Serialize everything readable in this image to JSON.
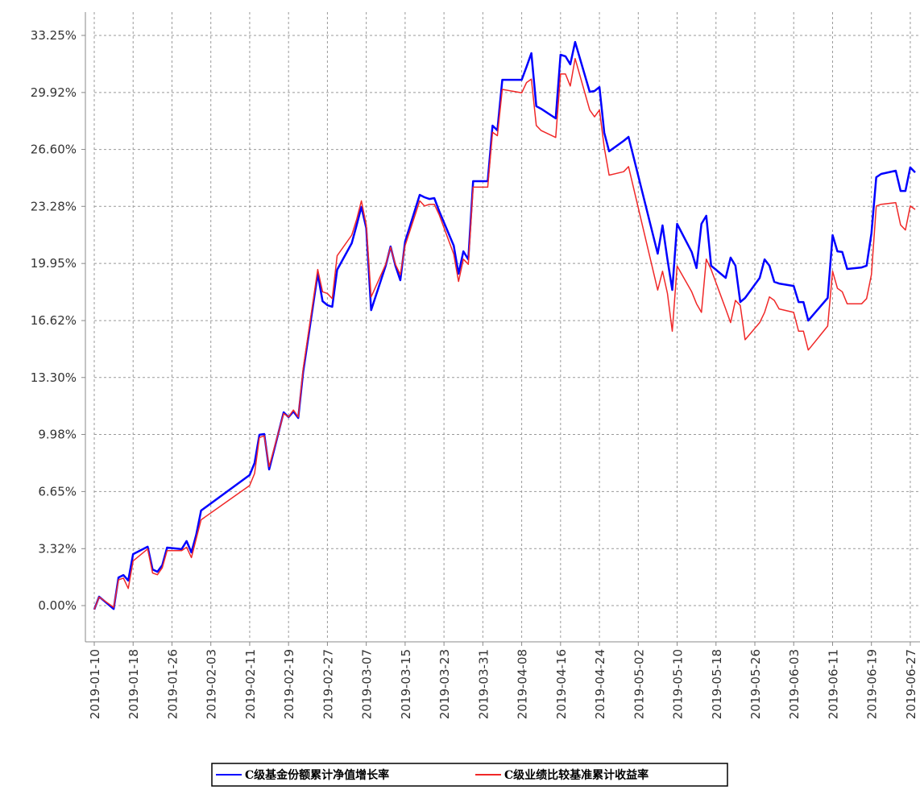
{
  "chart_data": {
    "type": "line",
    "x": [
      "2019-01-10",
      "2019-01-11",
      "2019-01-14",
      "2019-01-15",
      "2019-01-16",
      "2019-01-17",
      "2019-01-18",
      "2019-01-21",
      "2019-01-22",
      "2019-01-23",
      "2019-01-24",
      "2019-01-25",
      "2019-01-28",
      "2019-01-29",
      "2019-01-30",
      "2019-01-31",
      "2019-02-01",
      "2019-02-11",
      "2019-02-12",
      "2019-02-13",
      "2019-02-14",
      "2019-02-15",
      "2019-02-18",
      "2019-02-19",
      "2019-02-20",
      "2019-02-21",
      "2019-02-22",
      "2019-02-25",
      "2019-02-26",
      "2019-02-27",
      "2019-02-28",
      "2019-03-01",
      "2019-03-04",
      "2019-03-05",
      "2019-03-06",
      "2019-03-07",
      "2019-03-08",
      "2019-03-11",
      "2019-03-12",
      "2019-03-13",
      "2019-03-14",
      "2019-03-15",
      "2019-03-18",
      "2019-03-19",
      "2019-03-20",
      "2019-03-21",
      "2019-03-22",
      "2019-03-25",
      "2019-03-26",
      "2019-03-27",
      "2019-03-28",
      "2019-03-29",
      "2019-04-01",
      "2019-04-02",
      "2019-04-03",
      "2019-04-04",
      "2019-04-08",
      "2019-04-09",
      "2019-04-10",
      "2019-04-11",
      "2019-04-12",
      "2019-04-15",
      "2019-04-16",
      "2019-04-17",
      "2019-04-18",
      "2019-04-19",
      "2019-04-22",
      "2019-04-23",
      "2019-04-24",
      "2019-04-25",
      "2019-04-26",
      "2019-04-29",
      "2019-04-30",
      "2019-05-06",
      "2019-05-07",
      "2019-05-08",
      "2019-05-09",
      "2019-05-10",
      "2019-05-13",
      "2019-05-14",
      "2019-05-15",
      "2019-05-16",
      "2019-05-17",
      "2019-05-20",
      "2019-05-21",
      "2019-05-22",
      "2019-05-23",
      "2019-05-24",
      "2019-05-27",
      "2019-05-28",
      "2019-05-29",
      "2019-05-30",
      "2019-05-31",
      "2019-06-03",
      "2019-06-04",
      "2019-06-05",
      "2019-06-06",
      "2019-06-10",
      "2019-06-11",
      "2019-06-12",
      "2019-06-13",
      "2019-06-14",
      "2019-06-17",
      "2019-06-18",
      "2019-06-19",
      "2019-06-20",
      "2019-06-21",
      "2019-06-24",
      "2019-06-25",
      "2019-06-26",
      "2019-06-27",
      "2019-06-28"
    ],
    "series": [
      {
        "name": "C级基金份额累计净值增长率",
        "color": "#0000ff",
        "width": 2.5,
        "values": [
          -0.23,
          0.52,
          -0.2,
          1.64,
          1.78,
          1.46,
          3.0,
          3.43,
          2.11,
          1.97,
          2.35,
          3.38,
          3.29,
          3.76,
          3.1,
          4.13,
          5.54,
          7.61,
          8.31,
          9.96,
          10.0,
          7.94,
          11.27,
          10.99,
          11.32,
          10.94,
          13.62,
          19.35,
          17.75,
          17.52,
          17.42,
          19.58,
          21.13,
          22.17,
          23.25,
          22.02,
          17.23,
          19.82,
          20.94,
          19.82,
          18.97,
          21.23,
          23.95,
          23.81,
          23.71,
          23.76,
          23.01,
          20.99,
          19.35,
          20.66,
          20.19,
          24.75,
          24.75,
          27.99,
          27.71,
          30.66,
          30.66,
          31.42,
          32.21,
          29.12,
          28.97,
          28.41,
          32.12,
          32.03,
          31.56,
          32.87,
          29.96,
          30.01,
          30.24,
          27.57,
          26.49,
          27.1,
          27.33,
          20.52,
          22.17,
          20.19,
          18.41,
          22.26,
          20.62,
          19.68,
          22.26,
          22.73,
          19.82,
          19.11,
          20.29,
          19.82,
          17.7,
          17.94,
          19.11,
          20.19,
          19.82,
          18.88,
          18.78,
          18.64,
          17.7,
          17.7,
          16.62,
          17.94,
          21.6,
          20.66,
          20.62,
          19.63,
          19.72,
          19.82,
          21.7,
          24.98,
          25.17,
          25.36,
          24.18,
          24.18,
          25.55,
          25.26
        ]
      },
      {
        "name": "C级业绩比较基准累计收益率",
        "color": "#f02828",
        "width": 1.5,
        "values": [
          -0.23,
          0.5,
          -0.1,
          1.5,
          1.6,
          1.0,
          2.6,
          3.3,
          1.9,
          1.8,
          2.2,
          3.2,
          3.2,
          3.4,
          2.8,
          3.9,
          5.0,
          7.0,
          7.7,
          9.8,
          9.9,
          8.1,
          11.2,
          11.0,
          11.4,
          11.0,
          13.8,
          19.6,
          18.3,
          18.2,
          17.9,
          20.4,
          21.6,
          22.5,
          23.6,
          22.2,
          18.0,
          19.9,
          20.9,
          19.9,
          19.3,
          21.0,
          23.6,
          23.3,
          23.4,
          23.4,
          22.8,
          20.5,
          18.9,
          20.2,
          19.9,
          24.4,
          24.4,
          27.6,
          27.4,
          30.1,
          29.9,
          30.5,
          30.7,
          28.0,
          27.7,
          27.3,
          31.0,
          31.0,
          30.3,
          31.9,
          28.9,
          28.5,
          28.9,
          26.7,
          25.1,
          25.3,
          25.6,
          18.4,
          19.5,
          18.2,
          16.0,
          19.8,
          18.3,
          17.6,
          17.1,
          20.2,
          19.6,
          17.3,
          16.5,
          17.8,
          17.5,
          15.5,
          16.5,
          17.1,
          18.0,
          17.8,
          17.3,
          17.1,
          16.0,
          16.0,
          14.9,
          16.3,
          19.5,
          18.5,
          18.3,
          17.6,
          17.6,
          17.9,
          19.3,
          23.3,
          23.4,
          23.5,
          22.2,
          21.9,
          23.3,
          23.1
        ]
      }
    ],
    "xlim": [
      "2019-01-10",
      "2019-06-29"
    ],
    "xticks": [
      "2019-01-10",
      "2019-01-18",
      "2019-01-26",
      "2019-02-03",
      "2019-02-11",
      "2019-02-19",
      "2019-02-27",
      "2019-03-07",
      "2019-03-15",
      "2019-03-23",
      "2019-03-31",
      "2019-04-08",
      "2019-04-16",
      "2019-04-24",
      "2019-05-02",
      "2019-05-10",
      "2019-05-18",
      "2019-05-26",
      "2019-06-03",
      "2019-06-11",
      "2019-06-19",
      "2019-06-27"
    ],
    "ylim": [
      -2.02,
      34.61
    ],
    "yticks": [
      {
        "value": 0,
        "label": "0.00%"
      },
      {
        "value": 3.32,
        "label": "3.32%"
      },
      {
        "value": 6.65,
        "label": "6.65%"
      },
      {
        "value": 9.98,
        "label": "9.98%"
      },
      {
        "value": 13.3,
        "label": "13.30%"
      },
      {
        "value": 16.62,
        "label": "16.62%"
      },
      {
        "value": 19.95,
        "label": "19.95%"
      },
      {
        "value": 23.28,
        "label": "23.28%"
      },
      {
        "value": 26.6,
        "label": "26.60%"
      },
      {
        "value": 29.92,
        "label": "29.92%"
      },
      {
        "value": 33.25,
        "label": "33.25%"
      }
    ],
    "grid": true
  }
}
